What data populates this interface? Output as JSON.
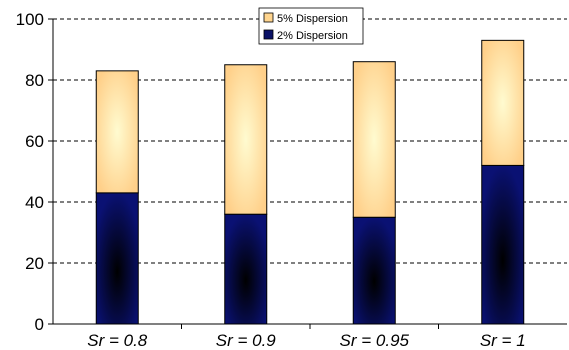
{
  "chart_data": {
    "type": "bar",
    "stacked": true,
    "categories": [
      "Sr = 0.8",
      "Sr = 0.9",
      "Sr = 0.95",
      "Sr = 1"
    ],
    "series": [
      {
        "name": "2% Dispersion",
        "values": [
          43,
          36,
          35,
          52
        ],
        "color": "#0a1166"
      },
      {
        "name": "5% Dispersion",
        "values": [
          40,
          49,
          51,
          41
        ],
        "color": "#ffd58f"
      }
    ],
    "totals": [
      83,
      85,
      86,
      93
    ],
    "ylim": [
      0,
      100
    ],
    "yticks": [
      0,
      20,
      40,
      60,
      80,
      100
    ],
    "grid": "dashed horizontal",
    "legend": {
      "placement": "top-center",
      "entries": [
        "5% Dispersion",
        "2% Dispersion"
      ]
    },
    "title": "",
    "xlabel": "",
    "ylabel": ""
  }
}
